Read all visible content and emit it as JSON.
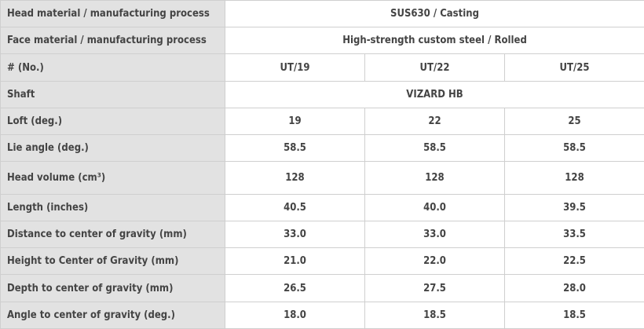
{
  "table": {
    "rows": [
      {
        "label": "Head material / manufacturing process",
        "values": [
          "SUS630 / Casting"
        ]
      },
      {
        "label": "Face material / manufacturing process",
        "values": [
          "High-strength custom steel / Rolled"
        ]
      },
      {
        "label": "# (No.)",
        "values": [
          "UT/19",
          "UT/22",
          "UT/25"
        ]
      },
      {
        "label": "Shaft",
        "values": [
          "VIZARD HB"
        ]
      },
      {
        "label": "Loft (deg.)",
        "values": [
          "19",
          "22",
          "25"
        ]
      },
      {
        "label": "Lie angle (deg.)",
        "values": [
          "58.5",
          "58.5",
          "58.5"
        ]
      },
      {
        "label": "Head volume (cm³)",
        "values": [
          "128",
          "128",
          "128"
        ]
      },
      {
        "label": "Length (inches)",
        "values": [
          "40.5",
          "40.0",
          "39.5"
        ]
      },
      {
        "label": "Distance to center of gravity (mm)",
        "values": [
          "33.0",
          "33.0",
          "33.5"
        ]
      },
      {
        "label": "Height to Center of Gravity (mm)",
        "values": [
          "21.0",
          "22.0",
          "22.5"
        ]
      },
      {
        "label": "Depth to center of gravity (mm)",
        "values": [
          "26.5",
          "27.5",
          "28.0"
        ]
      },
      {
        "label": "Angle to center of gravity (deg.)",
        "values": [
          "18.0",
          "18.5",
          "18.5"
        ]
      }
    ]
  }
}
